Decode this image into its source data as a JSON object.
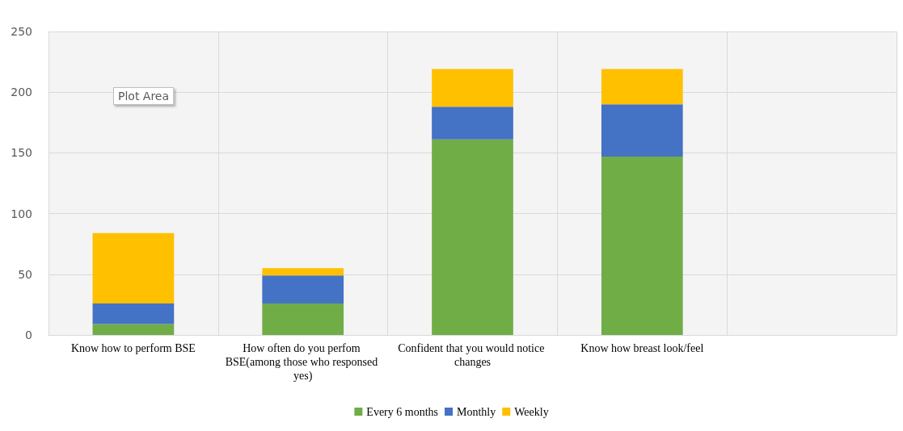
{
  "chart_data": {
    "type": "bar",
    "stacked": true,
    "categories": [
      "Know how to perform BSE",
      "How often do you perfom BSE(among those who responsed yes)",
      "Confident that you would notice changes",
      "Know how breast look/feel",
      null
    ],
    "series": [
      {
        "name": "Every 6 months",
        "color": "#70ad47",
        "values": [
          9,
          26,
          161,
          147,
          null
        ]
      },
      {
        "name": "Monthly",
        "color": "#4472c4",
        "values": [
          17,
          23,
          27,
          43,
          null
        ]
      },
      {
        "name": "Weekly",
        "color": "#ffc000",
        "values": [
          58,
          6,
          31,
          29,
          null
        ]
      }
    ],
    "ylim": [
      0,
      250
    ],
    "yticks": [
      0,
      50,
      100,
      150,
      200,
      250
    ],
    "grid": true,
    "legend": "bottom",
    "annotations": [
      "Plot Area"
    ]
  }
}
